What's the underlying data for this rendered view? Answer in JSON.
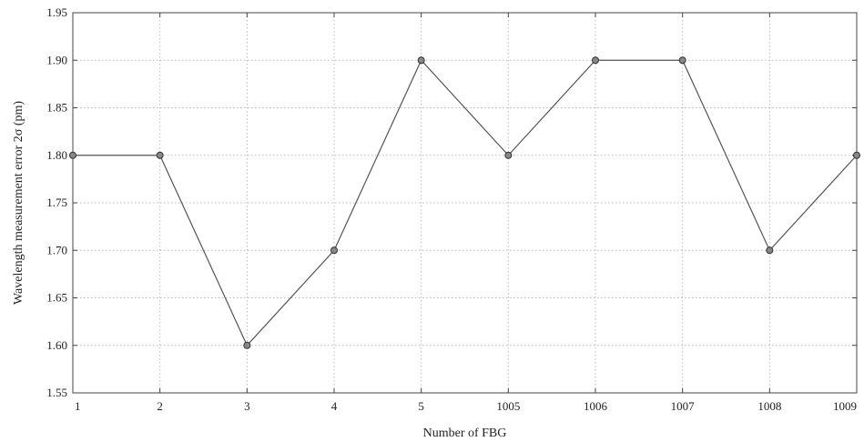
{
  "chart_data": {
    "type": "line",
    "xlabel": "Number of FBG",
    "ylabel": "Wavelength measurement error 2σ (pm)",
    "categories": [
      "1",
      "2",
      "3",
      "4",
      "5",
      "1005",
      "1006",
      "1007",
      "1008",
      "1009"
    ],
    "series": [
      {
        "values": [
          1.8,
          1.8,
          1.6,
          1.7,
          1.9,
          1.8,
          1.9,
          1.9,
          1.7,
          1.8
        ]
      }
    ],
    "ylim": [
      1.55,
      1.95
    ],
    "y_ticks": [
      "1.55",
      "1.60",
      "1.65",
      "1.70",
      "1.75",
      "1.80",
      "1.85",
      "1.90",
      "1.95"
    ],
    "grid": true,
    "colors": {
      "line": "#555555",
      "marker_fill": "#888888",
      "marker_stroke": "#333333",
      "grid": "#bbbbbb",
      "axis": "#444444"
    }
  }
}
